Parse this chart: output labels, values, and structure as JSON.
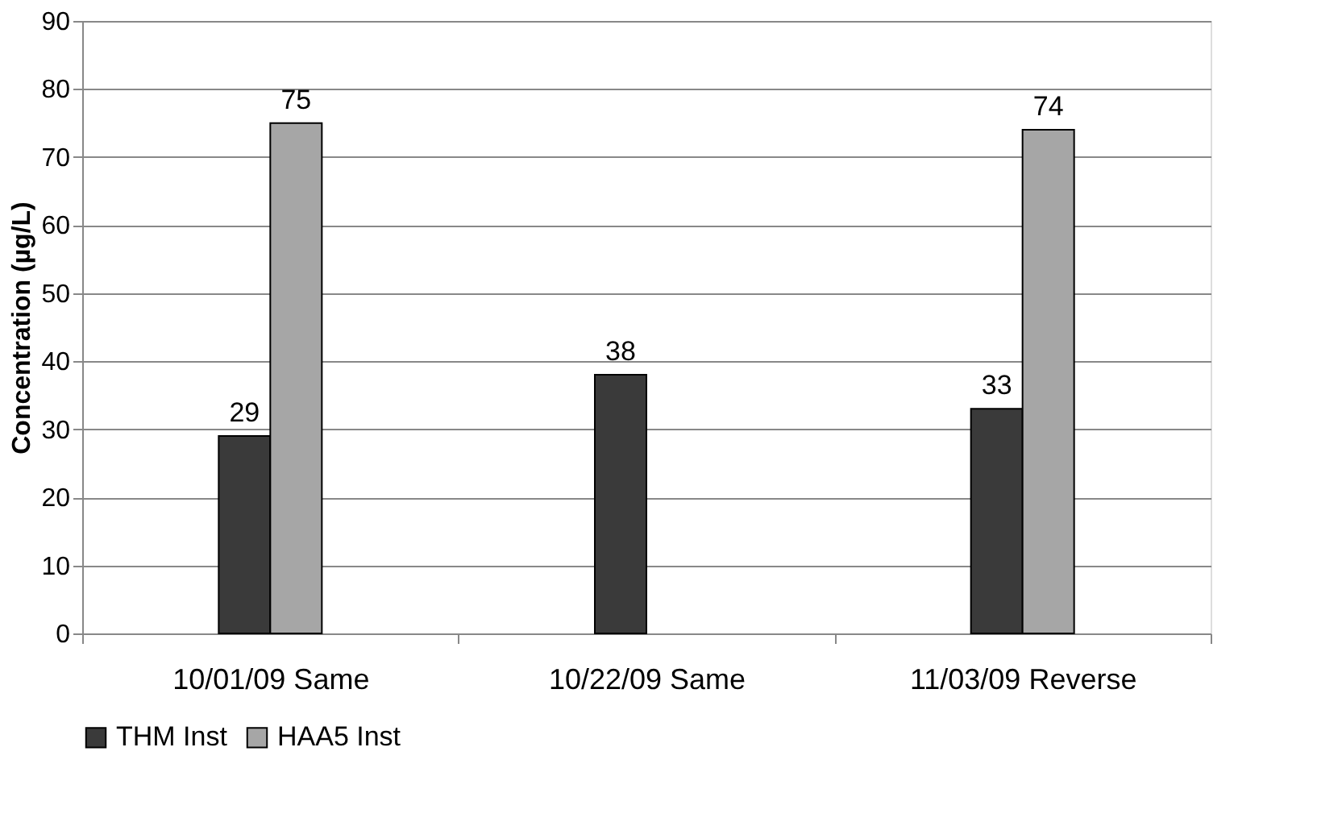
{
  "chart_data": {
    "type": "bar",
    "ylabel": "Concentration (µg/L)",
    "categories": [
      "10/01/09 Same",
      "10/22/09 Same",
      "11/03/09 Reverse"
    ],
    "series": [
      {
        "name": "THM Inst",
        "color": "#3a3a3a",
        "values": [
          29,
          38,
          33
        ]
      },
      {
        "name": "HAA5 Inst",
        "color": "#a6a6a6",
        "values": [
          75,
          null,
          74
        ]
      }
    ],
    "ylim": [
      0,
      90
    ],
    "yticks": [
      0,
      10,
      20,
      30,
      40,
      50,
      60,
      70,
      80,
      90
    ],
    "grid": "y",
    "legend": "bottom",
    "data_labels": true
  }
}
